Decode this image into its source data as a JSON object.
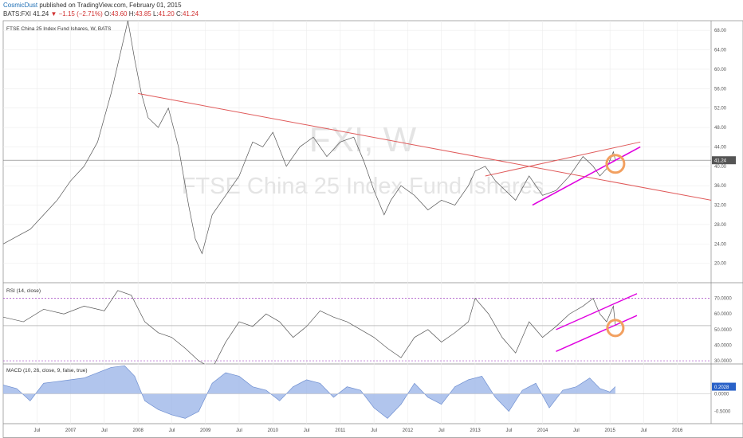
{
  "header": {
    "author": "CosmicDust",
    "published": "published on TradingView.com, February 01, 2015",
    "symbol": "BATS:FXI",
    "last": "41.24",
    "change": "−1.15 (−2.71%)",
    "o_label": "O:",
    "o": "43.60",
    "h_label": "H:",
    "h": "43.85",
    "l_label": "L:",
    "l": "41.20",
    "c_label": "C:",
    "c": "41.24"
  },
  "chart_data": {
    "type": "line",
    "title": "FTSE China 25 Index Fund Ishares, W, BATS",
    "watermark_symbol": "FXI, W",
    "watermark_name": "FTSE China 25 Index Fund Ishares",
    "x_axis": {
      "labels": [
        "Jul",
        "2007",
        "Jul",
        "2008",
        "Jul",
        "2009",
        "Jul",
        "2010",
        "Jul",
        "2011",
        "Jul",
        "2012",
        "Jul",
        "2013",
        "Jul",
        "2014",
        "Jul",
        "2015",
        "Jul",
        "2016"
      ],
      "range": [
        2006.0,
        2016.5
      ]
    },
    "price_panel": {
      "ylim": [
        16,
        70
      ],
      "ticks": [
        "68.00",
        "64.00",
        "60.00",
        "56.00",
        "52.00",
        "48.00",
        "44.00",
        "40.00",
        "36.00",
        "32.00",
        "28.00",
        "24.00",
        "20.00"
      ],
      "last_value": 41.24,
      "last_label": "41.24",
      "series": {
        "x": [
          2006.0,
          2006.2,
          2006.4,
          2006.6,
          2006.8,
          2007.0,
          2007.2,
          2007.4,
          2007.6,
          2007.75,
          2007.85,
          2007.95,
          2008.05,
          2008.15,
          2008.3,
          2008.45,
          2008.6,
          2008.75,
          2008.85,
          2008.95,
          2009.1,
          2009.3,
          2009.5,
          2009.7,
          2009.85,
          2010.0,
          2010.2,
          2010.4,
          2010.6,
          2010.8,
          2011.0,
          2011.2,
          2011.35,
          2011.5,
          2011.65,
          2011.75,
          2011.9,
          2012.1,
          2012.3,
          2012.5,
          2012.7,
          2012.9,
          2013.0,
          2013.15,
          2013.3,
          2013.45,
          2013.6,
          2013.8,
          2014.0,
          2014.2,
          2014.4,
          2014.6,
          2014.75,
          2014.85,
          2014.95,
          2015.05,
          2015.08
        ],
        "y": [
          24,
          25.5,
          27,
          30,
          33,
          37,
          40,
          45,
          55,
          64,
          70,
          62,
          55,
          50,
          48,
          52,
          44,
          32,
          25,
          22,
          30,
          34,
          38,
          45,
          44,
          47,
          40,
          44,
          46,
          42,
          45,
          46,
          41,
          35,
          30,
          33,
          36,
          34,
          31,
          33,
          32,
          36,
          39,
          40,
          37,
          35,
          33,
          38,
          34,
          35,
          38,
          42,
          40,
          38,
          39.5,
          43,
          41.24
        ]
      }
    },
    "rsi_panel": {
      "label": "RSI (14, close)",
      "ylim": [
        28,
        80
      ],
      "ticks": [
        "70.0000",
        "60.0000",
        "50.0000",
        "40.0000",
        "30.0000"
      ],
      "bands": [
        70,
        30
      ],
      "last_value": 52.5,
      "series": {
        "x": [
          2006.0,
          2006.3,
          2006.6,
          2006.9,
          2007.2,
          2007.5,
          2007.7,
          2007.9,
          2008.1,
          2008.3,
          2008.5,
          2008.7,
          2008.9,
          2009.1,
          2009.3,
          2009.5,
          2009.7,
          2009.9,
          2010.1,
          2010.3,
          2010.5,
          2010.7,
          2010.9,
          2011.1,
          2011.3,
          2011.5,
          2011.7,
          2011.9,
          2012.1,
          2012.3,
          2012.5,
          2012.7,
          2012.9,
          2013.0,
          2013.2,
          2013.4,
          2013.6,
          2013.8,
          2014.0,
          2014.2,
          2014.4,
          2014.6,
          2014.75,
          2014.85,
          2014.95,
          2015.05,
          2015.08
        ],
        "y": [
          58,
          55,
          63,
          60,
          65,
          62,
          75,
          72,
          55,
          48,
          45,
          38,
          30,
          25,
          42,
          55,
          52,
          60,
          55,
          45,
          52,
          62,
          58,
          55,
          50,
          45,
          38,
          32,
          45,
          50,
          42,
          48,
          55,
          70,
          60,
          45,
          35,
          55,
          45,
          52,
          60,
          65,
          70,
          60,
          55,
          65,
          52.5
        ]
      }
    },
    "macd_panel": {
      "label": "MACD (10, 26, close, 9, false, true)",
      "ylim": [
        -0.85,
        0.85
      ],
      "ticks": [
        "0.0000",
        "-0.5000"
      ],
      "last_value": 0.2028,
      "last_label": "0.2028",
      "series": {
        "x": [
          2006.0,
          2006.2,
          2006.4,
          2006.6,
          2006.8,
          2007.0,
          2007.2,
          2007.4,
          2007.6,
          2007.8,
          2007.95,
          2008.1,
          2008.3,
          2008.5,
          2008.7,
          2008.9,
          2009.1,
          2009.3,
          2009.5,
          2009.7,
          2009.9,
          2010.1,
          2010.3,
          2010.5,
          2010.7,
          2010.9,
          2011.1,
          2011.3,
          2011.5,
          2011.7,
          2011.9,
          2012.1,
          2012.3,
          2012.5,
          2012.7,
          2012.9,
          2013.1,
          2013.3,
          2013.5,
          2013.7,
          2013.9,
          2014.1,
          2014.3,
          2014.5,
          2014.7,
          2014.85,
          2015.0,
          2015.08
        ],
        "y": [
          0.25,
          0.15,
          -0.2,
          0.3,
          0.35,
          0.4,
          0.45,
          0.6,
          0.75,
          0.8,
          0.5,
          -0.2,
          -0.45,
          -0.6,
          -0.7,
          -0.5,
          0.3,
          0.6,
          0.5,
          0.2,
          0.1,
          -0.2,
          0.2,
          0.4,
          0.3,
          -0.1,
          0.2,
          0.1,
          -0.4,
          -0.7,
          -0.3,
          0.3,
          -0.1,
          -0.3,
          0.2,
          0.4,
          0.5,
          -0.1,
          -0.5,
          0.1,
          0.3,
          -0.4,
          0.1,
          0.2,
          0.45,
          0.15,
          0.05,
          0.2028
        ]
      }
    },
    "annotations": {
      "price_trendlines": [
        {
          "color": "#e05a5a",
          "points": [
            [
              2008.0,
              55.0
            ],
            [
              2016.5,
              33.0
            ]
          ]
        },
        {
          "color": "#e05a5a",
          "points": [
            [
              2013.15,
              38.0
            ],
            [
              2015.45,
              45.0
            ]
          ]
        },
        {
          "color": "#e000e0",
          "points": [
            [
              2013.85,
              32.0
            ],
            [
              2015.45,
              44.0
            ]
          ]
        }
      ],
      "price_circle": {
        "color": "#f2a060",
        "x": 2015.08,
        "y": 40.5
      },
      "rsi_trendlines": [
        {
          "color": "#e000e0",
          "points": [
            [
              2014.2,
              50.0
            ],
            [
              2015.4,
              73.0
            ]
          ]
        },
        {
          "color": "#e000e0",
          "points": [
            [
              2014.2,
              36.0
            ],
            [
              2015.4,
              59.0
            ]
          ]
        }
      ],
      "rsi_circle": {
        "color": "#f2a060",
        "x": 2015.08,
        "y": 51.0
      }
    },
    "grid": true
  }
}
